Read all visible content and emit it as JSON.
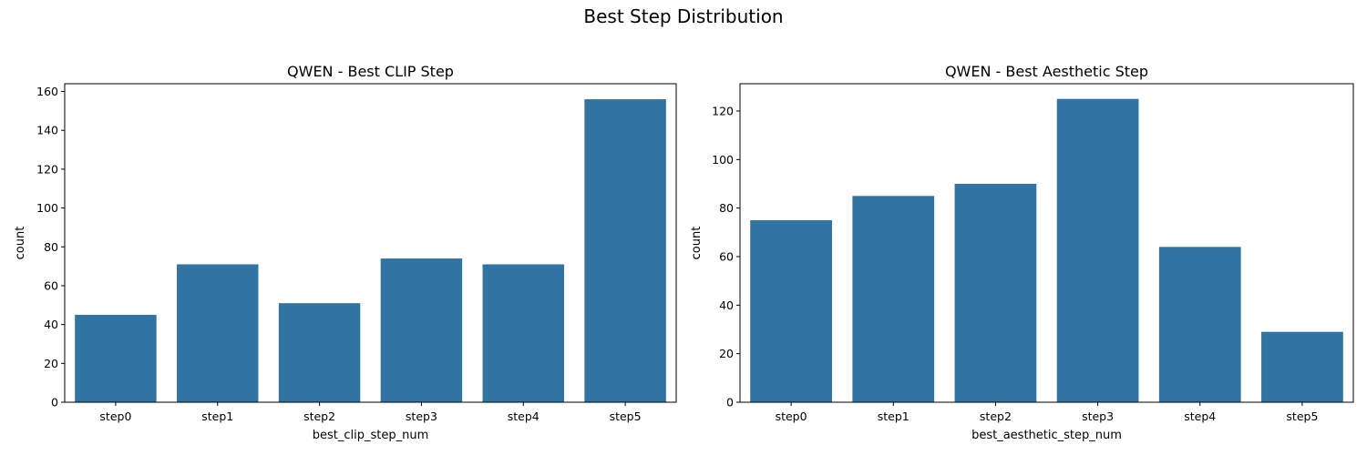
{
  "suptitle": "Best Step Distribution",
  "chart_data": [
    {
      "type": "bar",
      "title": "QWEN - Best CLIP Step",
      "xlabel": "best_clip_step_num",
      "ylabel": "count",
      "categories": [
        "step0",
        "step1",
        "step2",
        "step3",
        "step4",
        "step5"
      ],
      "values": [
        45,
        71,
        51,
        74,
        71,
        156
      ],
      "ylim": [
        0,
        164
      ],
      "yticks": [
        0,
        20,
        40,
        60,
        80,
        100,
        120,
        140,
        160
      ],
      "grid": false,
      "color": "#3274a1"
    },
    {
      "type": "bar",
      "title": "QWEN - Best Aesthetic Step",
      "xlabel": "best_aesthetic_step_num",
      "ylabel": "count",
      "categories": [
        "step0",
        "step1",
        "step2",
        "step3",
        "step4",
        "step5"
      ],
      "values": [
        75,
        85,
        90,
        125,
        64,
        29
      ],
      "ylim": [
        0,
        131.25
      ],
      "yticks": [
        0,
        20,
        40,
        60,
        80,
        100,
        120
      ],
      "grid": false,
      "color": "#3274a1"
    }
  ]
}
